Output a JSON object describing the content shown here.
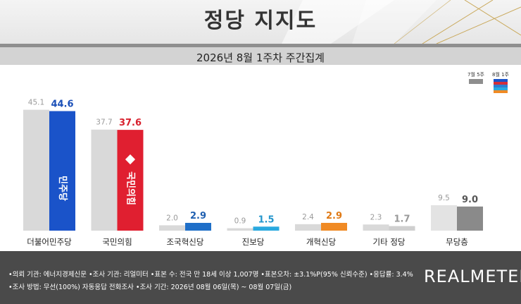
{
  "header": {
    "title": "정당 지지도",
    "subtitle": "2026년 8월 1주차 주간집계"
  },
  "legend": {
    "prev_label": "7월 5주",
    "curr_label": "8월 1주",
    "prev_color": "#8e8e8e",
    "curr_swatch_colors": [
      "#1a53c9",
      "#d32f3a",
      "#2d7fd1",
      "#29a9df",
      "#f08a24"
    ]
  },
  "chart_data": {
    "type": "bar",
    "categories": [
      "더불어민주당",
      "국민의힘",
      "조국혁신당",
      "진보당",
      "개혁신당",
      "기타 정당",
      "무당층"
    ],
    "series": [
      {
        "name": "7월 5주",
        "values": [
          45.1,
          37.7,
          2.0,
          0.9,
          2.4,
          2.3,
          9.5
        ]
      },
      {
        "name": "8월 1주",
        "values": [
          44.6,
          37.6,
          2.9,
          1.5,
          2.9,
          1.7,
          9.0
        ]
      }
    ],
    "ylim": [
      0,
      50
    ],
    "grid": false,
    "legend_position": "top-right",
    "prev_colors": [
      "#d9d9d9",
      "#d9d9d9",
      "#d9d9d9",
      "#d9d9d9",
      "#d9d9d9",
      "#d9d9d9",
      "#e3e3e3"
    ],
    "curr_colors": [
      "#1a53c9",
      "#e01f30",
      "#1f6fc8",
      "#29a9df",
      "#f08a24",
      "#cfcfcf",
      "#8a8a8a"
    ],
    "curr_label_colors": [
      "#1a4fb8",
      "#d8202d",
      "#1f5fb0",
      "#2596cc",
      "#e07a15",
      "#9a9a9a",
      "#555555"
    ],
    "party_logos": [
      {
        "index": 0,
        "text": "민주당"
      },
      {
        "index": 1,
        "text": "국민의힘"
      }
    ]
  },
  "footer": {
    "line1": "•의뢰 기관: 에너지경제신문 •조사 기관: 리얼미터 •표본 수: 전국 만 18세 이상 1,007명 •표본오차: ±3.1%P(95% 신뢰수준) •응답률: 3.4%",
    "line2": "•조사 방법: 무선(100%) 자동응답 전화조사 •조사 기간: 2026년 08월 06일(목) ~ 08월 07일(금)",
    "logo": "REALMETER"
  }
}
